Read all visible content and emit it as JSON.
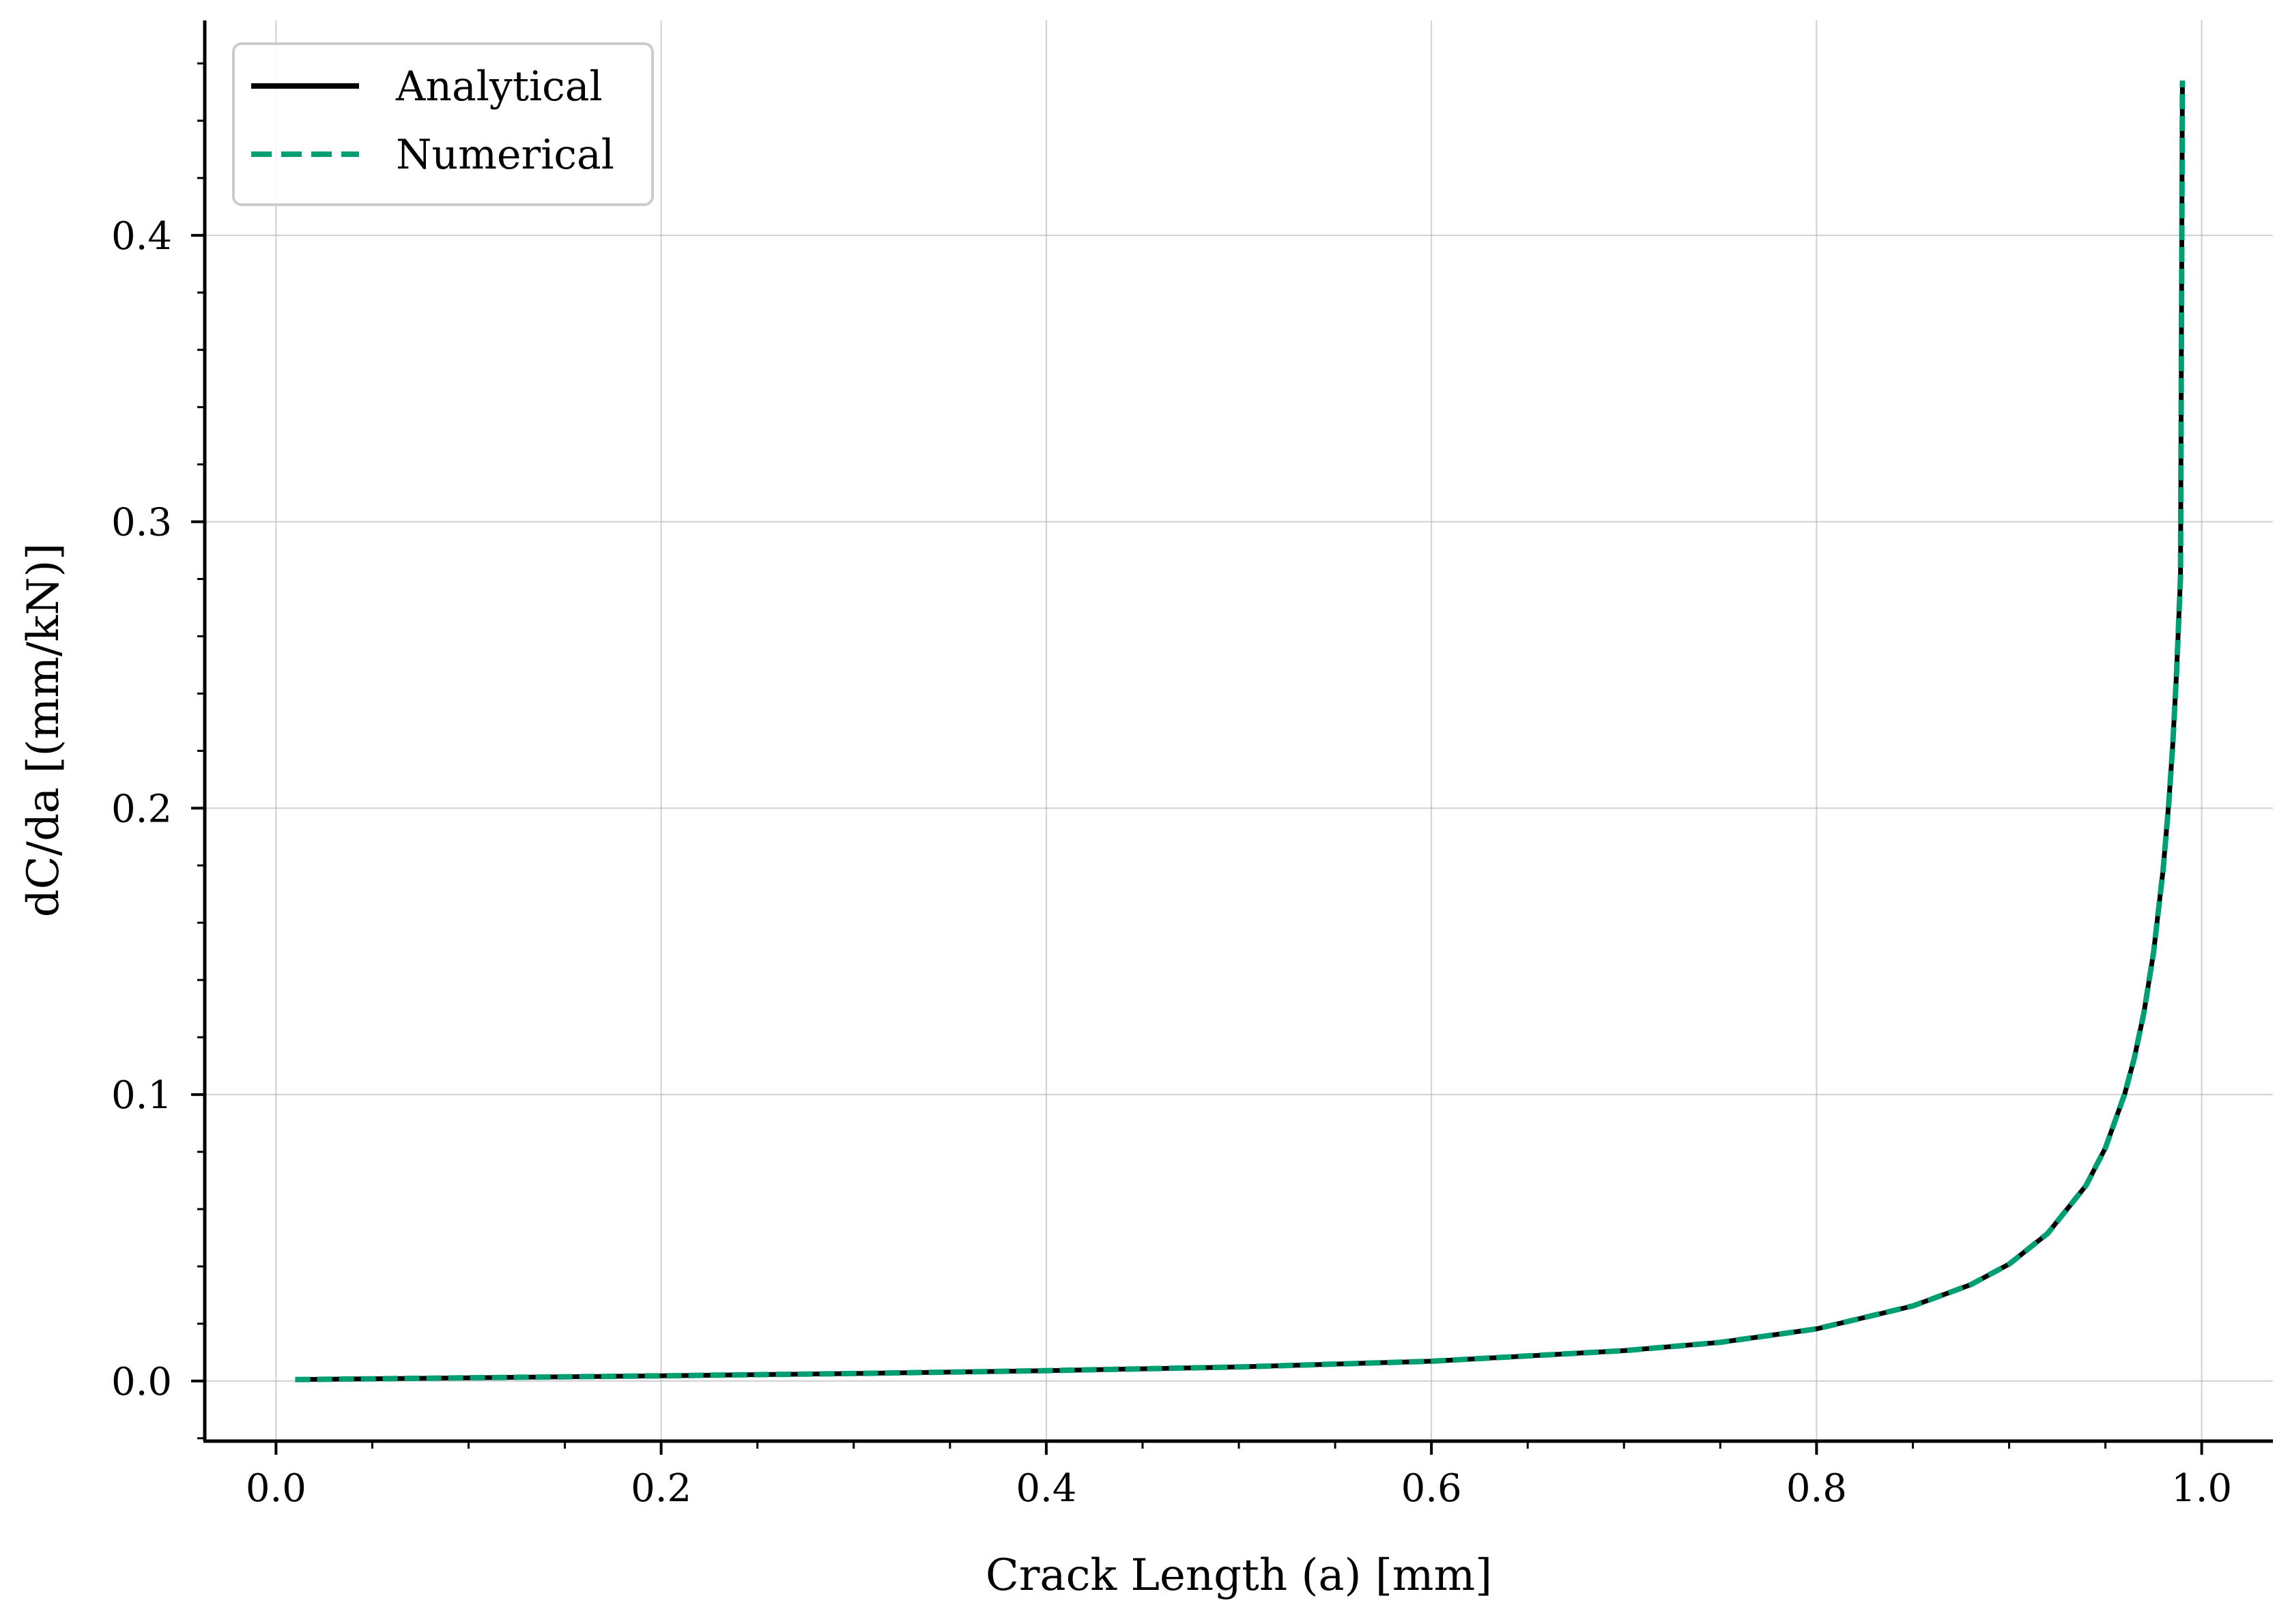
{
  "chart_data": {
    "type": "line",
    "title": "",
    "xlabel": "Crack Length (a) [mm]",
    "ylabel": "dC/da [(mm/kN)]",
    "xlim": [
      -0.037,
      1.037
    ],
    "ylim": [
      -0.021,
      0.475
    ],
    "xticks": [
      0.0,
      0.2,
      0.4,
      0.6,
      0.8,
      1.0
    ],
    "xtick_labels": [
      "0.0",
      "0.2",
      "0.4",
      "0.6",
      "0.8",
      "1.0"
    ],
    "yticks": [
      0.0,
      0.1,
      0.2,
      0.3,
      0.4
    ],
    "ytick_labels": [
      "0.0",
      "0.1",
      "0.2",
      "0.3",
      "0.4"
    ],
    "grid": true,
    "legend_position": "top-left",
    "series": [
      {
        "name": "Analytical",
        "style": "solid",
        "color": "#000000",
        "x": [
          0.01,
          0.1,
          0.2,
          0.3,
          0.4,
          0.5,
          0.6,
          0.7,
          0.75,
          0.8,
          0.85,
          0.88,
          0.9,
          0.92,
          0.94,
          0.95,
          0.96,
          0.965,
          0.97,
          0.975,
          0.98,
          0.983,
          0.985,
          0.987,
          0.989,
          0.99
        ],
        "y": [
          0.0005,
          0.0011,
          0.0018,
          0.0026,
          0.0036,
          0.0049,
          0.0069,
          0.0106,
          0.0135,
          0.0182,
          0.0262,
          0.0336,
          0.0408,
          0.0515,
          0.0683,
          0.0814,
          0.1002,
          0.1127,
          0.1286,
          0.1496,
          0.1787,
          0.2027,
          0.2225,
          0.2478,
          0.2808,
          0.454
        ]
      },
      {
        "name": "Numerical",
        "style": "dashed",
        "color": "#009E73",
        "x": [
          0.01,
          0.1,
          0.2,
          0.3,
          0.4,
          0.5,
          0.6,
          0.7,
          0.75,
          0.8,
          0.85,
          0.88,
          0.9,
          0.92,
          0.94,
          0.95,
          0.96,
          0.965,
          0.97,
          0.975,
          0.98,
          0.983,
          0.985,
          0.987,
          0.989,
          0.99
        ],
        "y": [
          0.0005,
          0.0011,
          0.0018,
          0.0026,
          0.0036,
          0.0049,
          0.0069,
          0.0106,
          0.0135,
          0.0182,
          0.0262,
          0.0336,
          0.0408,
          0.0515,
          0.0683,
          0.0814,
          0.1002,
          0.1127,
          0.1286,
          0.1496,
          0.1787,
          0.2027,
          0.2225,
          0.2478,
          0.2808,
          0.454
        ]
      }
    ]
  }
}
